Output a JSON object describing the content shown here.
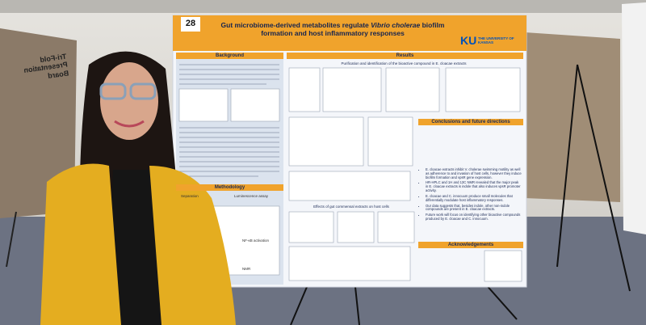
{
  "poster": {
    "number": "28",
    "title": {
      "part1": "Gut microbiome-derived metabolites regulate ",
      "italic": "Vibrio cholerae",
      "part2": " biofilm formation and host inflammatory responses"
    },
    "institution": {
      "short": "KU",
      "name": "THE UNIVERSITY OF KANSAS"
    },
    "sections": {
      "background": "Background",
      "methodology": {
        "title": "Methodology",
        "steps": [
          "Separation",
          "Luminescence assay",
          "NF-κB activation",
          "NMR"
        ]
      },
      "results": {
        "title": "Results",
        "panels": [
          "Purification and identification of the bioactive compound in E. cloacae extracts",
          "Effects of gut commensal extracts on host cells"
        ]
      },
      "conclusions": {
        "title": "Conclusions and future directions",
        "bullets": [
          "E. cloacae extracts inhibit V. cholerae swimming motility as well as adherence to and invasion of host cells, however they induce biofilm formation and vpsR gene expression.",
          "HR-HPLC and 1H and 13C NMR revealed that the major peak in E. cloacae extracts is indole that also induces vpsR promoter activity.",
          "E. cloacae and C. innocuum produce small molecules that differentially modulate host inflammatory responses.",
          "Our data suggests that, besides indole, other non-indole compounds are present in E. cloacae extracts.",
          "Future work will focus on identifying other bioactive compounds produced by E. cloacae and C. innocuum."
        ]
      },
      "acknowledgements": "Acknowledgements"
    }
  },
  "side_board": {
    "label": "Tri-Fold Presentation Board"
  }
}
